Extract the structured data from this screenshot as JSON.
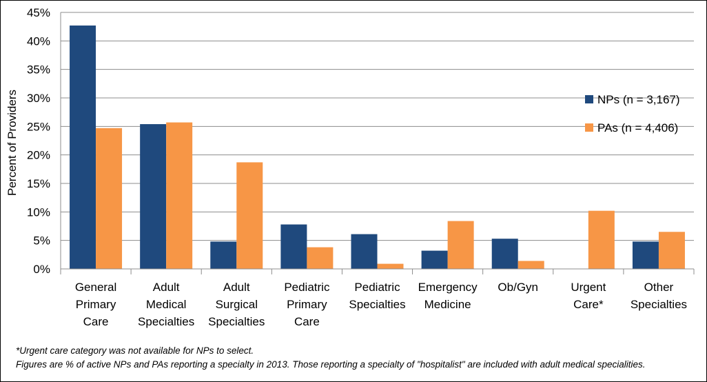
{
  "chart_data": {
    "type": "bar",
    "title": "",
    "ylabel": "Percent of Providers",
    "xlabel": "",
    "ylim": [
      0,
      45
    ],
    "yticks": [
      0,
      5,
      10,
      15,
      20,
      25,
      30,
      35,
      40,
      45
    ],
    "ytick_labels": [
      "0%",
      "5%",
      "10%",
      "15%",
      "20%",
      "25%",
      "30%",
      "35%",
      "40%",
      "45%"
    ],
    "grid": true,
    "legend_position": "right",
    "categories": [
      [
        "General",
        "Primary",
        "Care"
      ],
      [
        "Adult",
        "Medical",
        "Specialties"
      ],
      [
        "Adult",
        "Surgical",
        "Specialties"
      ],
      [
        "Pediatric",
        "Primary",
        "Care"
      ],
      [
        "Pediatric",
        "Specialties"
      ],
      [
        "Emergency",
        "Medicine"
      ],
      [
        "Ob/Gyn"
      ],
      [
        "Urgent",
        "Care*"
      ],
      [
        "Other",
        "Specialties"
      ]
    ],
    "series": [
      {
        "name": "NPs (n = 3,167)",
        "color": "#1f497d",
        "values": [
          42.7,
          25.4,
          4.8,
          7.8,
          6.1,
          3.2,
          5.3,
          null,
          4.8
        ]
      },
      {
        "name": "PAs (n = 4,406)",
        "color": "#f79646",
        "values": [
          24.7,
          25.7,
          18.7,
          3.8,
          0.9,
          8.4,
          1.4,
          10.2,
          6.5
        ]
      }
    ]
  },
  "notes": {
    "footnote": "*Urgent care category was not available for NPs to select.",
    "source": "Figures are % of active NPs and PAs reporting a specialty in 2013. Those reporting a specialty of \"hospitalist\" are included with adult medical specialities."
  }
}
